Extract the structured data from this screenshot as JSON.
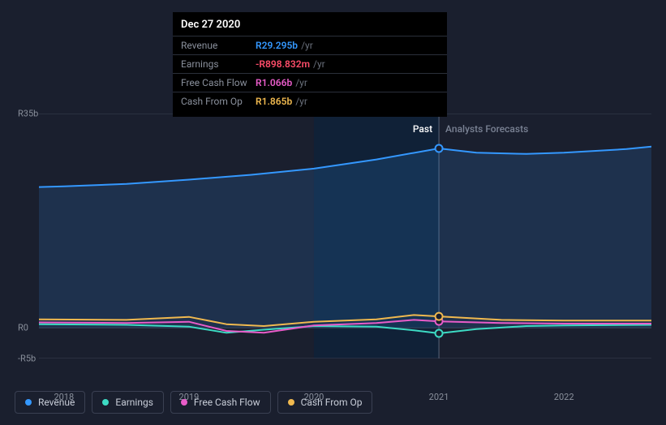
{
  "tooltip": {
    "date": "Dec 27 2020",
    "rows": [
      {
        "label": "Revenue",
        "value": "R29.295b",
        "unit": "/yr",
        "color": "#3498ff"
      },
      {
        "label": "Earnings",
        "value": "-R898.832m",
        "unit": "/yr",
        "color": "#ff4d6a"
      },
      {
        "label": "Free Cash Flow",
        "value": "R1.066b",
        "unit": "/yr",
        "color": "#e85cc9"
      },
      {
        "label": "Cash From Op",
        "value": "R1.865b",
        "unit": "/yr",
        "color": "#f0b94f"
      }
    ]
  },
  "chart": {
    "type": "line-area",
    "background_color": "#1a1f2e",
    "y_axis": {
      "ticks": [
        {
          "label": "R35b",
          "value": 35
        },
        {
          "label": "R0",
          "value": 0
        },
        {
          "label": "-R5b",
          "value": -5
        }
      ],
      "min": -5,
      "max": 35
    },
    "x_axis": {
      "min": 2017.8,
      "max": 2022.7,
      "ticks": [
        2018,
        2019,
        2020,
        2021,
        2022
      ],
      "marker_x": 2021
    },
    "regions": {
      "past": {
        "label": "Past",
        "color": "#ffffff",
        "end_x": 2021
      },
      "forecast": {
        "label": "Analysts Forecasts",
        "color": "#7a8294",
        "start_x": 2021
      }
    },
    "shaded_band": {
      "start_x": 2020,
      "end_x": 2021,
      "fill": "#0f2238",
      "opacity": 0.85
    },
    "gridline_color": "#3a4052",
    "series": [
      {
        "name": "Revenue",
        "color": "#3498ff",
        "width": 2,
        "area": true,
        "area_opacity": 0.15,
        "points": [
          [
            2017.8,
            23.0
          ],
          [
            2018.0,
            23.1
          ],
          [
            2018.5,
            23.5
          ],
          [
            2019.0,
            24.2
          ],
          [
            2019.5,
            25.0
          ],
          [
            2020.0,
            26.0
          ],
          [
            2020.5,
            27.5
          ],
          [
            2021.0,
            29.3
          ],
          [
            2021.3,
            28.6
          ],
          [
            2021.7,
            28.4
          ],
          [
            2022.0,
            28.6
          ],
          [
            2022.5,
            29.2
          ],
          [
            2022.7,
            29.6
          ]
        ],
        "marker_at": [
          2021.0,
          29.3
        ]
      },
      {
        "name": "Earnings",
        "color": "#3ddbc4",
        "width": 2,
        "points": [
          [
            2017.8,
            0.6
          ],
          [
            2018.5,
            0.5
          ],
          [
            2019.0,
            0.2
          ],
          [
            2019.3,
            -0.8
          ],
          [
            2019.6,
            -0.3
          ],
          [
            2020.0,
            0.3
          ],
          [
            2020.5,
            0.2
          ],
          [
            2020.8,
            -0.4
          ],
          [
            2021.0,
            -0.9
          ],
          [
            2021.3,
            -0.2
          ],
          [
            2021.7,
            0.3
          ],
          [
            2022.0,
            0.4
          ],
          [
            2022.7,
            0.5
          ]
        ],
        "marker_at": [
          2021.0,
          -0.9
        ]
      },
      {
        "name": "Free Cash Flow",
        "color": "#e85cc9",
        "width": 2,
        "points": [
          [
            2017.8,
            0.9
          ],
          [
            2018.5,
            0.8
          ],
          [
            2019.0,
            1.0
          ],
          [
            2019.3,
            -0.5
          ],
          [
            2019.6,
            -0.8
          ],
          [
            2020.0,
            0.4
          ],
          [
            2020.5,
            0.8
          ],
          [
            2020.8,
            1.3
          ],
          [
            2021.0,
            1.07
          ],
          [
            2021.5,
            0.8
          ],
          [
            2022.0,
            0.7
          ],
          [
            2022.7,
            0.7
          ]
        ],
        "marker_at": [
          2021.0,
          1.07
        ]
      },
      {
        "name": "Cash From Op",
        "color": "#f0b94f",
        "width": 2,
        "points": [
          [
            2017.8,
            1.4
          ],
          [
            2018.5,
            1.3
          ],
          [
            2019.0,
            1.8
          ],
          [
            2019.3,
            0.6
          ],
          [
            2019.6,
            0.3
          ],
          [
            2020.0,
            1.0
          ],
          [
            2020.5,
            1.4
          ],
          [
            2020.8,
            2.1
          ],
          [
            2021.0,
            1.87
          ],
          [
            2021.5,
            1.3
          ],
          [
            2022.0,
            1.2
          ],
          [
            2022.7,
            1.2
          ]
        ],
        "marker_at": [
          2021.0,
          1.87
        ]
      }
    ]
  },
  "legend": [
    {
      "label": "Revenue",
      "color": "#3498ff"
    },
    {
      "label": "Earnings",
      "color": "#3ddbc4"
    },
    {
      "label": "Free Cash Flow",
      "color": "#e85cc9"
    },
    {
      "label": "Cash From Op",
      "color": "#f0b94f"
    }
  ]
}
